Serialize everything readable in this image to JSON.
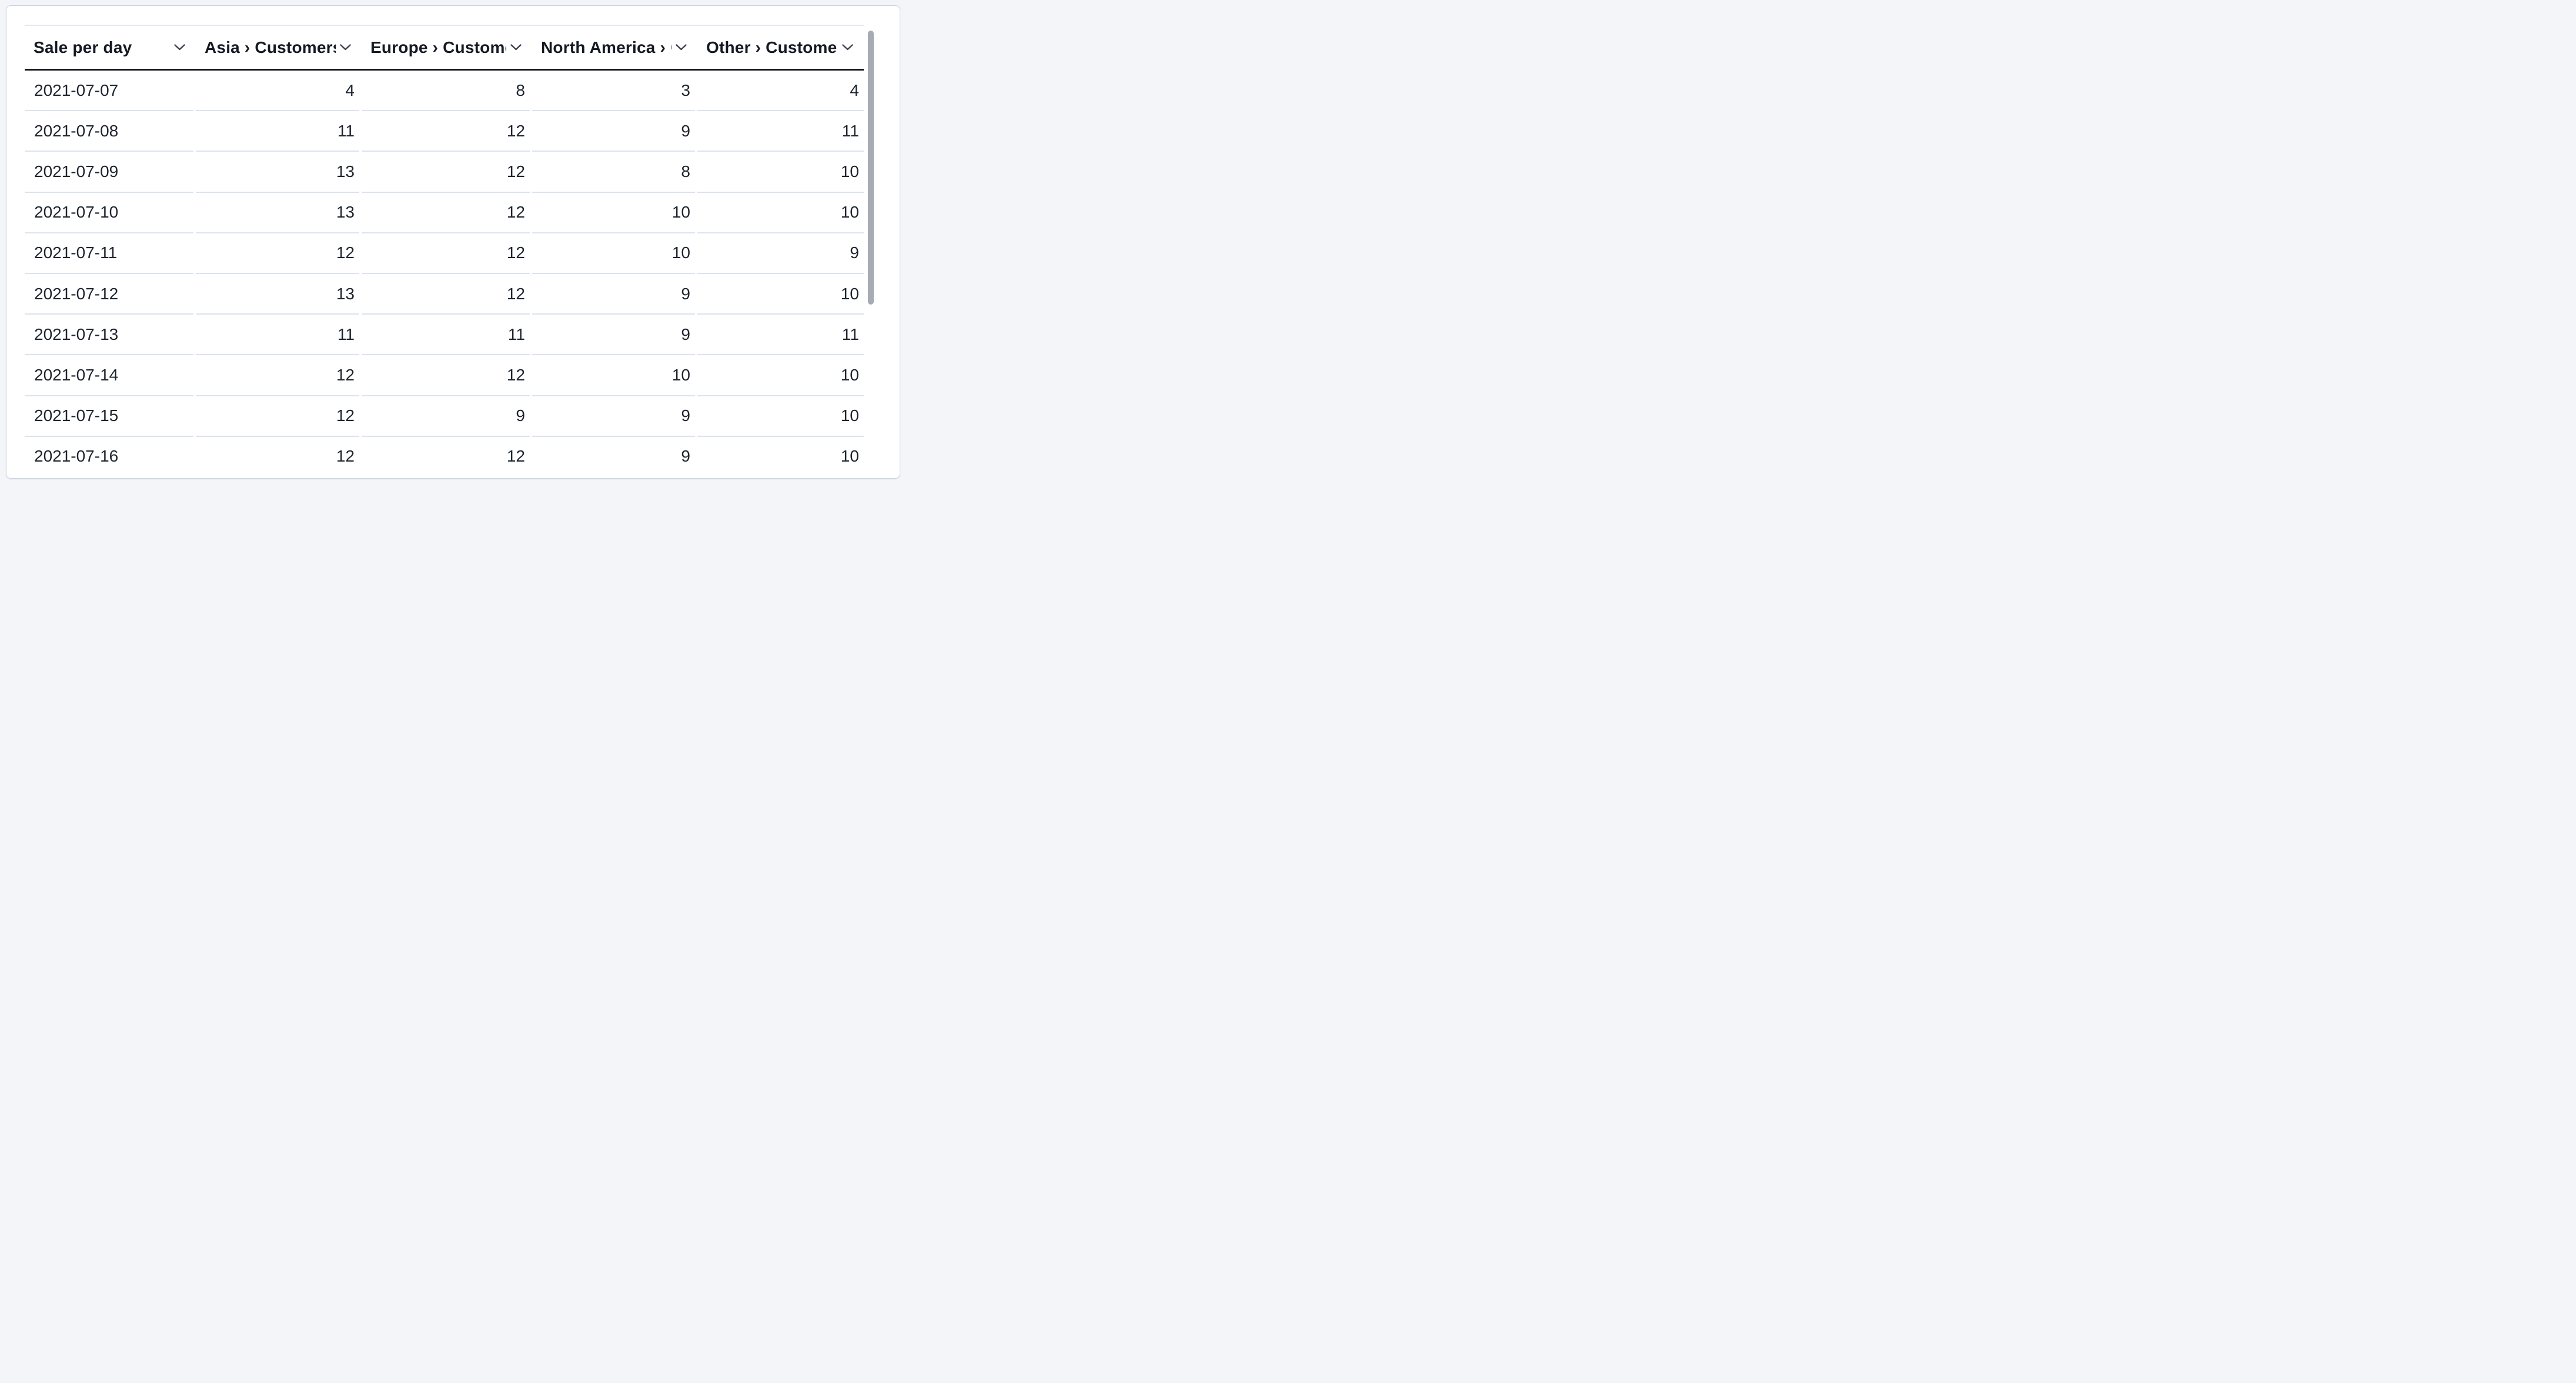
{
  "page": {
    "background_color": "#f3f5f9"
  },
  "card": {
    "background_color": "#ffffff",
    "border_color": "#c9d2e2"
  },
  "table": {
    "columns": [
      {
        "id": "sale-per-day",
        "label": "Sale per day",
        "align": "left"
      },
      {
        "id": "asia-customers",
        "label": "Asia › Customers",
        "align": "right"
      },
      {
        "id": "europe-customers",
        "label": "Europe › Customers",
        "align": "right"
      },
      {
        "id": "north-america-customers",
        "label": "North America › Customers",
        "align": "right"
      },
      {
        "id": "other-customers",
        "label": "Other › Customers",
        "align": "right"
      }
    ],
    "rows": [
      {
        "date": "2021-07-07",
        "values": [
          4,
          8,
          3,
          4
        ]
      },
      {
        "date": "2021-07-08",
        "values": [
          11,
          12,
          9,
          11
        ]
      },
      {
        "date": "2021-07-09",
        "values": [
          13,
          12,
          8,
          10
        ]
      },
      {
        "date": "2021-07-10",
        "values": [
          13,
          12,
          10,
          10
        ]
      },
      {
        "date": "2021-07-11",
        "values": [
          12,
          12,
          10,
          9
        ]
      },
      {
        "date": "2021-07-12",
        "values": [
          13,
          12,
          9,
          10
        ]
      },
      {
        "date": "2021-07-13",
        "values": [
          11,
          11,
          9,
          11
        ]
      },
      {
        "date": "2021-07-14",
        "values": [
          12,
          12,
          10,
          10
        ]
      },
      {
        "date": "2021-07-15",
        "values": [
          12,
          9,
          9,
          10
        ]
      },
      {
        "date": "2021-07-16",
        "values": [
          12,
          12,
          9,
          10
        ]
      }
    ],
    "colors": {
      "header_text": "#141923",
      "cell_text": "#1e242f",
      "header_rule": "#13171f",
      "row_divider": "#dce3ef"
    },
    "icons": {
      "column_menu": "chevron-down-icon"
    }
  },
  "scrollbar": {
    "thumb_color": "#a7abb3"
  }
}
